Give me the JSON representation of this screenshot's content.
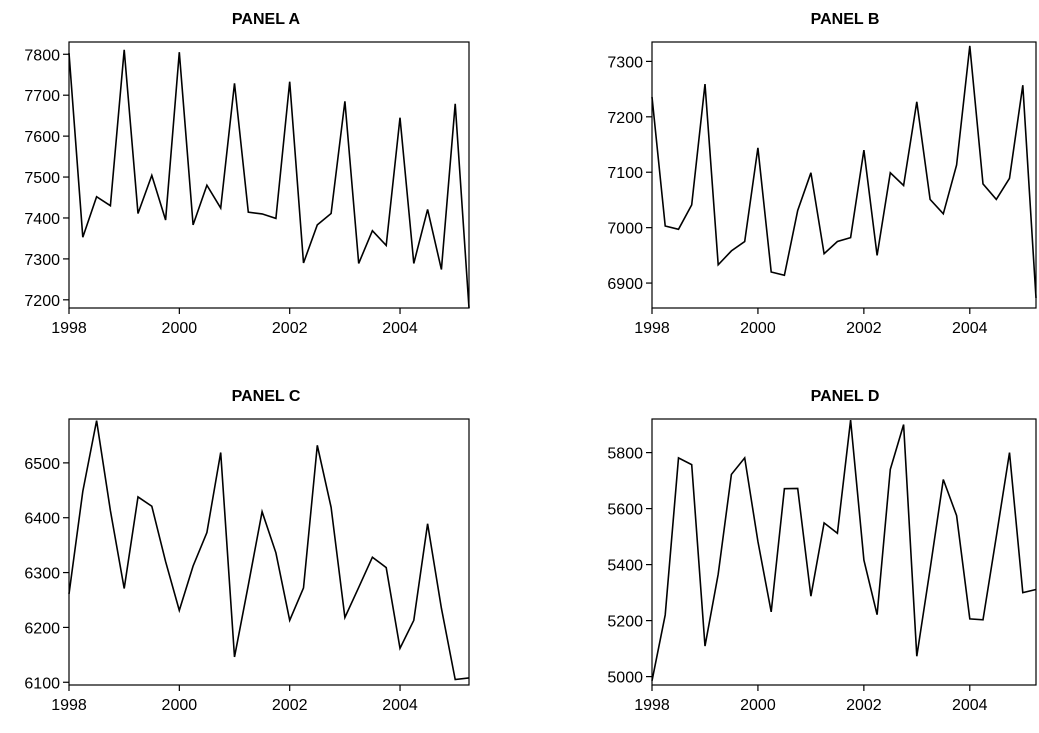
{
  "chart_data": [
    {
      "type": "line",
      "title": "PANEL A",
      "xlabel": "",
      "ylabel": "",
      "xlim": [
        1998,
        2005.25
      ],
      "ylim": [
        7180,
        7830
      ],
      "x_ticks": [
        1998,
        2000,
        2002,
        2004
      ],
      "y_ticks": [
        7200,
        7300,
        7400,
        7500,
        7600,
        7700,
        7800
      ],
      "grid": false,
      "series": [
        {
          "x": [
            1998,
            1998.25,
            1998.5,
            1998.75,
            1999,
            1999.25,
            1999.5,
            1999.75,
            2000,
            2000.25,
            2000.5,
            2000.75,
            2001,
            2001.25,
            2001.5,
            2001.75,
            2002,
            2002.25,
            2002.5,
            2002.75,
            2003,
            2003.25,
            2003.5,
            2003.75,
            2004,
            2004.25,
            2004.5,
            2004.75,
            2005,
            2005.25
          ],
          "values": [
            7803,
            7353,
            7452,
            7430,
            7811,
            7411,
            7504,
            7395,
            7805,
            7383,
            7480,
            7424,
            7729,
            7414,
            7410,
            7399,
            7733,
            7290,
            7383,
            7411,
            7685,
            7289,
            7369,
            7333,
            7645,
            7289,
            7421,
            7274,
            7679,
            7180
          ]
        }
      ]
    },
    {
      "type": "line",
      "title": "PANEL B",
      "xlabel": "",
      "ylabel": "",
      "xlim": [
        1998,
        2005.25
      ],
      "ylim": [
        6855,
        7335
      ],
      "x_ticks": [
        1998,
        2000,
        2002,
        2004
      ],
      "y_ticks": [
        6900,
        7000,
        7100,
        7200,
        7300
      ],
      "grid": false,
      "series": [
        {
          "x": [
            1998,
            1998.25,
            1998.5,
            1998.75,
            1999,
            1999.25,
            1999.5,
            1999.75,
            2000,
            2000.25,
            2000.5,
            2000.75,
            2001,
            2001.25,
            2001.5,
            2001.75,
            2002,
            2002.25,
            2002.5,
            2002.75,
            2003,
            2003.25,
            2003.5,
            2003.75,
            2004,
            2004.25,
            2004.5,
            2004.75,
            2005,
            2005.25
          ],
          "values": [
            7236,
            7003,
            6997,
            7041,
            7259,
            6933,
            6958,
            6975,
            7144,
            6920,
            6914,
            7031,
            7099,
            6953,
            6975,
            6982,
            7140,
            6950,
            7099,
            7076,
            7227,
            7051,
            7025,
            7113,
            7328,
            7079,
            7051,
            7089,
            7257,
            6873
          ]
        }
      ]
    },
    {
      "type": "line",
      "title": "PANEL C",
      "xlabel": "",
      "ylabel": "",
      "xlim": [
        1998,
        2005.25
      ],
      "ylim": [
        6095,
        6580
      ],
      "x_ticks": [
        1998,
        2000,
        2002,
        2004
      ],
      "y_ticks": [
        6100,
        6200,
        6300,
        6400,
        6500
      ],
      "grid": false,
      "series": [
        {
          "x": [
            1998,
            1998.25,
            1998.5,
            1998.75,
            1999,
            1999.25,
            1999.5,
            1999.75,
            2000,
            2000.25,
            2000.5,
            2000.75,
            2001,
            2001.25,
            2001.5,
            2001.75,
            2002,
            2002.25,
            2002.5,
            2002.75,
            2003,
            2003.25,
            2003.5,
            2003.75,
            2004,
            2004.25,
            2004.5,
            2004.75,
            2005,
            2005.25
          ],
          "values": [
            6261,
            6448,
            6577,
            6413,
            6271,
            6438,
            6421,
            6320,
            6231,
            6312,
            6373,
            6519,
            6146,
            6277,
            6411,
            6336,
            6213,
            6272,
            6532,
            6419,
            6218,
            6273,
            6328,
            6309,
            6162,
            6213,
            6389,
            6235,
            6105,
            6108
          ]
        }
      ]
    },
    {
      "type": "line",
      "title": "PANEL D",
      "xlabel": "",
      "ylabel": "",
      "xlim": [
        1998,
        2005.25
      ],
      "ylim": [
        4970,
        5920
      ],
      "x_ticks": [
        1998,
        2000,
        2002,
        2004
      ],
      "y_ticks": [
        5000,
        5200,
        5400,
        5600,
        5800
      ],
      "grid": false,
      "series": [
        {
          "x": [
            1998,
            1998.25,
            1998.5,
            1998.75,
            1999,
            1999.25,
            1999.5,
            1999.75,
            2000,
            2000.25,
            2000.5,
            2000.75,
            2001,
            2001.25,
            2001.5,
            2001.75,
            2002,
            2002.25,
            2002.5,
            2002.75,
            2003,
            2003.25,
            2003.5,
            2003.75,
            2004,
            2004.25,
            2004.5,
            2004.75,
            2005,
            2005.25
          ],
          "values": [
            4985,
            5220,
            5781,
            5757,
            5109,
            5366,
            5722,
            5781,
            5483,
            5231,
            5671,
            5672,
            5287,
            5549,
            5512,
            5916,
            5416,
            5221,
            5740,
            5900,
            5073,
            5384,
            5704,
            5575,
            5206,
            5203,
            5500,
            5800,
            5300,
            5311
          ]
        }
      ]
    }
  ]
}
